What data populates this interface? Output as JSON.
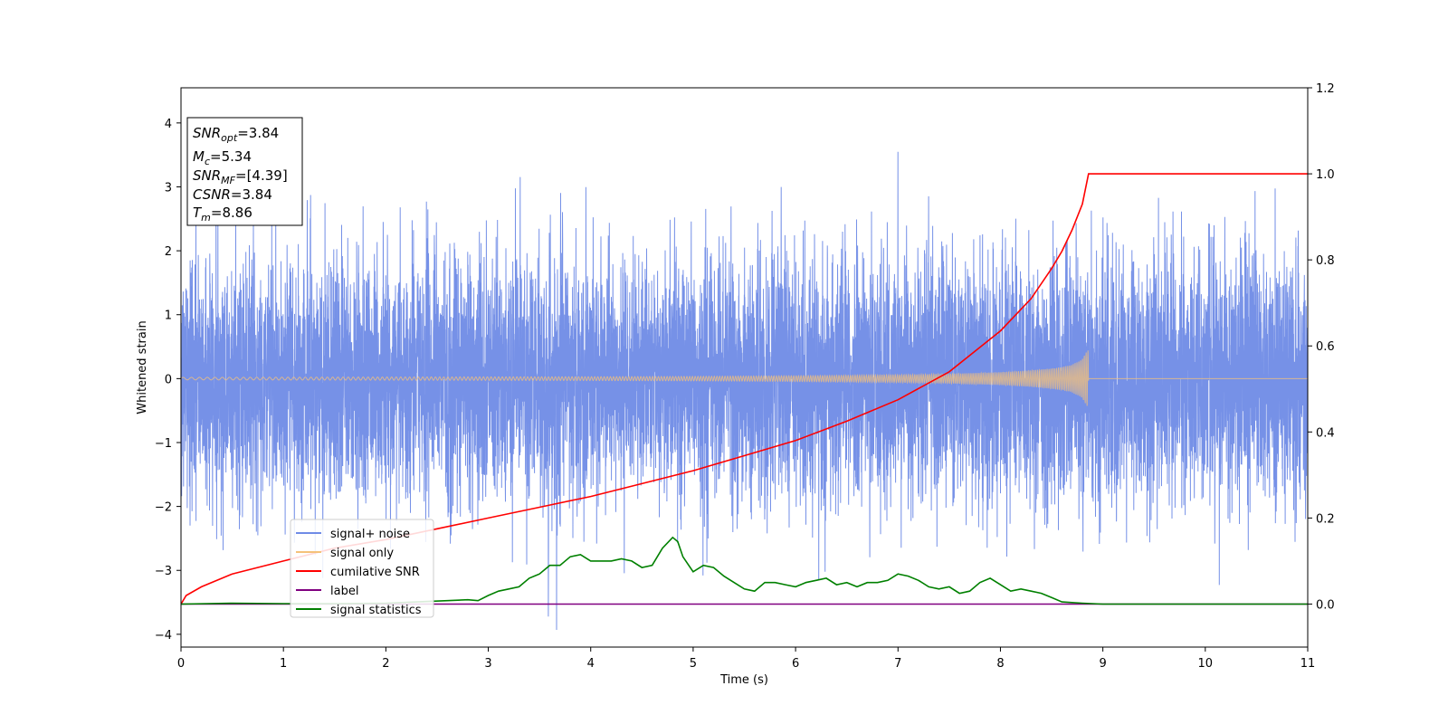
{
  "chart_data": {
    "type": "line",
    "xlabel": "Time (s)",
    "ylabel": "Whitened strain",
    "xlim": [
      0,
      11
    ],
    "ylim": [
      -4.2,
      4.55
    ],
    "y2lim": [
      -0.1,
      1.2
    ],
    "x_ticks": [
      0,
      1,
      2,
      3,
      4,
      5,
      6,
      7,
      8,
      9,
      10,
      11
    ],
    "y_ticks": [
      -4,
      -3,
      -2,
      -1,
      0,
      1,
      2,
      3,
      4
    ],
    "y_tick_labels": [
      "−4",
      "−3",
      "−2",
      "−1",
      "0",
      "1",
      "2",
      "3",
      "4"
    ],
    "y2_ticks": [
      0.0,
      0.2,
      0.4,
      0.6,
      0.8,
      1.0,
      1.2
    ],
    "y2_tick_labels": [
      "0.0",
      "0.2",
      "0.4",
      "0.6",
      "0.8",
      "1.0",
      "1.2"
    ],
    "grid": false,
    "legend_position": "lower-left",
    "legend": [
      {
        "name": "signal+ noise",
        "color": "#6f8be6"
      },
      {
        "name": "signal only",
        "color": "#f5c27a"
      },
      {
        "name": "cumilative SNR",
        "color": "#ff0000"
      },
      {
        "name": "label",
        "color": "#800080"
      },
      {
        "name": "signal statistics",
        "color": "#008000"
      }
    ],
    "annotation": [
      {
        "base": "SNR",
        "sub": "opt",
        "value": "=3.84"
      },
      {
        "base": "M",
        "sub": "c",
        "value": "=5.34"
      },
      {
        "base": "SNR",
        "sub": "MF",
        "value": "=[4.39]"
      },
      {
        "base": "CSNR",
        "sub": "",
        "value": "=3.84"
      },
      {
        "base": "T",
        "sub": "m",
        "value": "=8.86"
      }
    ],
    "merger_time": 8.86,
    "series": [
      {
        "name": "signal+ noise",
        "axis": "left",
        "color": "#6f8be6",
        "description_kind": "noise",
        "amplitude_std": 1.0,
        "x_range": [
          0,
          11
        ]
      },
      {
        "name": "signal only",
        "axis": "left",
        "color": "#f5c27a",
        "envelope": {
          "x": [
            0,
            2,
            4,
            5,
            6,
            7,
            7.5,
            8,
            8.3,
            8.5,
            8.6,
            8.7,
            8.75,
            8.8,
            8.84,
            8.86
          ],
          "amp": [
            0.02,
            0.025,
            0.03,
            0.035,
            0.045,
            0.06,
            0.075,
            0.1,
            0.13,
            0.16,
            0.18,
            0.22,
            0.26,
            0.32,
            0.42,
            0.45
          ]
        }
      },
      {
        "name": "cumilative SNR",
        "axis": "right",
        "color": "#ff0000",
        "x": [
          0,
          0.05,
          0.2,
          0.5,
          1,
          1.5,
          2,
          2.5,
          3,
          3.5,
          4,
          4.5,
          5,
          5.5,
          6,
          6.5,
          7,
          7.5,
          8,
          8.3,
          8.5,
          8.6,
          8.7,
          8.8,
          8.86,
          9,
          10,
          11
        ],
        "y": [
          0.0,
          0.02,
          0.04,
          0.07,
          0.1,
          0.13,
          0.15,
          0.175,
          0.2,
          0.225,
          0.25,
          0.28,
          0.31,
          0.345,
          0.38,
          0.425,
          0.475,
          0.54,
          0.635,
          0.71,
          0.78,
          0.82,
          0.87,
          0.93,
          1.0,
          1.0,
          1.0,
          1.0
        ]
      },
      {
        "name": "label",
        "axis": "right",
        "color": "#800080",
        "x": [
          0,
          11
        ],
        "y": [
          0.0,
          0.0
        ]
      },
      {
        "name": "signal statistics",
        "axis": "right",
        "color": "#008000",
        "x": [
          0,
          0.5,
          1,
          1.5,
          2,
          2.3,
          2.6,
          2.8,
          2.9,
          3.0,
          3.1,
          3.2,
          3.3,
          3.4,
          3.5,
          3.6,
          3.7,
          3.8,
          3.9,
          4.0,
          4.1,
          4.2,
          4.3,
          4.4,
          4.5,
          4.6,
          4.65,
          4.7,
          4.8,
          4.85,
          4.9,
          5.0,
          5.1,
          5.2,
          5.3,
          5.4,
          5.5,
          5.6,
          5.7,
          5.8,
          5.9,
          6.0,
          6.1,
          6.2,
          6.3,
          6.4,
          6.5,
          6.6,
          6.7,
          6.8,
          6.9,
          7.0,
          7.1,
          7.2,
          7.3,
          7.4,
          7.5,
          7.6,
          7.7,
          7.8,
          7.9,
          8.0,
          8.1,
          8.2,
          8.3,
          8.4,
          8.5,
          8.6,
          8.8,
          9.0,
          9.5,
          10,
          11
        ],
        "y": [
          0.0,
          0.002,
          0.001,
          0.001,
          0.002,
          0.005,
          0.008,
          0.01,
          0.008,
          0.02,
          0.03,
          0.035,
          0.04,
          0.06,
          0.07,
          0.09,
          0.09,
          0.11,
          0.115,
          0.1,
          0.1,
          0.1,
          0.105,
          0.1,
          0.085,
          0.09,
          0.11,
          0.13,
          0.155,
          0.145,
          0.11,
          0.075,
          0.09,
          0.085,
          0.065,
          0.05,
          0.035,
          0.03,
          0.05,
          0.05,
          0.045,
          0.04,
          0.05,
          0.055,
          0.06,
          0.045,
          0.05,
          0.04,
          0.05,
          0.05,
          0.055,
          0.07,
          0.065,
          0.055,
          0.04,
          0.035,
          0.04,
          0.025,
          0.03,
          0.05,
          0.06,
          0.045,
          0.03,
          0.035,
          0.03,
          0.025,
          0.015,
          0.005,
          0.002,
          0.0,
          0.0,
          0.0,
          0.0
        ]
      }
    ]
  }
}
